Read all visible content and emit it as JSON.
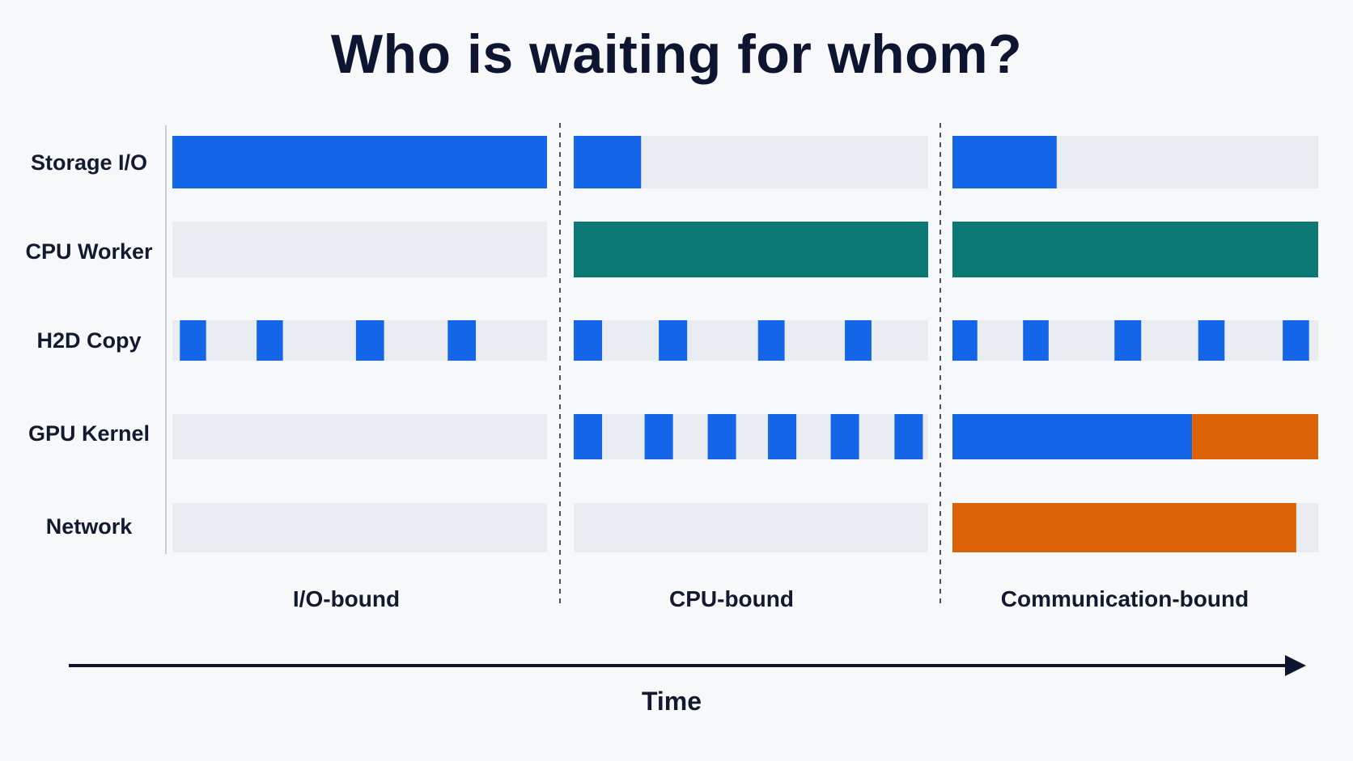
{
  "title": "Who is waiting for whom?",
  "axis": {
    "label": "Time"
  },
  "colors": {
    "background": "#f6f8fa",
    "track": "#e9ecf1",
    "io": "#1565e8",
    "cpu": "#0b7875",
    "comm": "#db6207",
    "text": "#111a2e",
    "axis": "#0d1530"
  },
  "rows": [
    {
      "id": "storage-io",
      "label": "Storage I/O"
    },
    {
      "id": "cpu-worker",
      "label": "CPU Worker"
    },
    {
      "id": "h2d-copy",
      "label": "H2D Copy"
    },
    {
      "id": "gpu-kernel",
      "label": "GPU Kernel"
    },
    {
      "id": "network",
      "label": "Network"
    }
  ],
  "phases": [
    {
      "id": "io-bound",
      "label": "I/O-bound",
      "activity": {
        "storage-io": [
          {
            "start": 0.0,
            "end": 1.0,
            "color": "io"
          }
        ],
        "cpu-worker": [],
        "h2d-copy": [
          {
            "start": 0.02,
            "end": 0.09,
            "color": "io"
          },
          {
            "start": 0.225,
            "end": 0.295,
            "color": "io"
          },
          {
            "start": 0.49,
            "end": 0.565,
            "color": "io"
          },
          {
            "start": 0.735,
            "end": 0.81,
            "color": "io"
          }
        ],
        "gpu-kernel": [],
        "network": []
      }
    },
    {
      "id": "cpu-bound",
      "label": "CPU-bound",
      "activity": {
        "storage-io": [
          {
            "start": 0.0,
            "end": 0.19,
            "color": "io"
          }
        ],
        "cpu-worker": [
          {
            "start": 0.0,
            "end": 1.0,
            "color": "cpu"
          }
        ],
        "h2d-copy": [
          {
            "start": 0.0,
            "end": 0.08,
            "color": "io"
          },
          {
            "start": 0.24,
            "end": 0.32,
            "color": "io"
          },
          {
            "start": 0.52,
            "end": 0.595,
            "color": "io"
          },
          {
            "start": 0.765,
            "end": 0.84,
            "color": "io"
          }
        ],
        "gpu-kernel": [
          {
            "start": 0.0,
            "end": 0.08,
            "color": "io"
          },
          {
            "start": 0.2,
            "end": 0.28,
            "color": "io"
          },
          {
            "start": 0.378,
            "end": 0.458,
            "color": "io"
          },
          {
            "start": 0.548,
            "end": 0.628,
            "color": "io"
          },
          {
            "start": 0.725,
            "end": 0.805,
            "color": "io"
          },
          {
            "start": 0.905,
            "end": 0.985,
            "color": "io"
          }
        ],
        "network": []
      }
    },
    {
      "id": "communication-bound",
      "label": "Communication-bound",
      "activity": {
        "storage-io": [
          {
            "start": 0.0,
            "end": 0.285,
            "color": "io"
          }
        ],
        "cpu-worker": [
          {
            "start": 0.0,
            "end": 1.0,
            "color": "cpu"
          }
        ],
        "h2d-copy": [
          {
            "start": 0.0,
            "end": 0.068,
            "color": "io"
          },
          {
            "start": 0.193,
            "end": 0.263,
            "color": "io"
          },
          {
            "start": 0.443,
            "end": 0.516,
            "color": "io"
          },
          {
            "start": 0.672,
            "end": 0.744,
            "color": "io"
          },
          {
            "start": 0.903,
            "end": 0.975,
            "color": "io"
          }
        ],
        "gpu-kernel": [
          {
            "start": 0.0,
            "end": 0.655,
            "color": "io"
          },
          {
            "start": 0.655,
            "end": 1.0,
            "color": "comm"
          }
        ],
        "network": [
          {
            "start": 0.0,
            "end": 0.94,
            "color": "comm"
          }
        ]
      }
    }
  ]
}
